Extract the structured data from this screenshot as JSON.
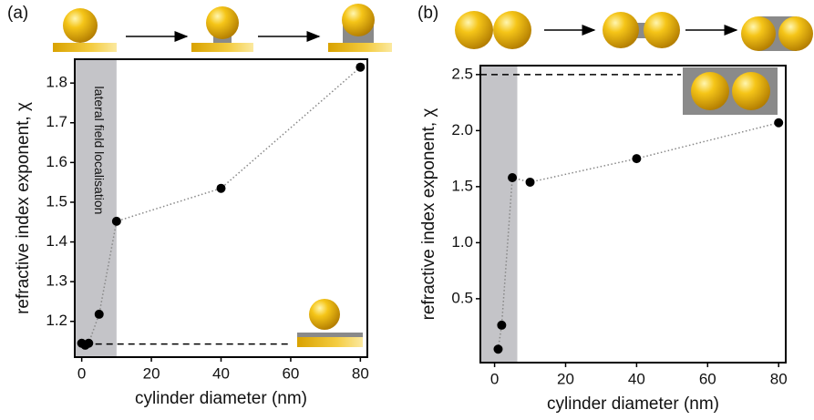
{
  "chart_data": [
    {
      "type": "scatter",
      "panel_label": "(a)",
      "annotation": "lateral field localisation",
      "x_label": "cylinder diameter (nm)",
      "y_label": "refractive index exponent, χ",
      "x": [
        0,
        1,
        2,
        5,
        10,
        40,
        80
      ],
      "values": [
        1.145,
        1.14,
        1.145,
        1.218,
        1.452,
        1.535,
        1.84
      ],
      "color": "#000000",
      "line_color": "#888888",
      "xlim": [
        -2,
        82
      ],
      "ylim": [
        1.11,
        1.86
      ],
      "xticks": [
        0,
        20,
        40,
        60,
        80
      ],
      "yticks": [
        1.2,
        1.3,
        1.4,
        1.5,
        1.6,
        1.7,
        1.8
      ],
      "shade_x": [
        -2,
        10
      ],
      "reference_line": {
        "y": 1.143,
        "x": [
          0.8,
          60
        ]
      }
    },
    {
      "type": "scatter",
      "panel_label": "(b)",
      "x_label": "cylinder diameter (nm)",
      "y_label": "refractive index exponent, χ",
      "x": [
        1,
        2,
        5,
        10,
        40,
        80
      ],
      "values": [
        0.05,
        0.264,
        1.58,
        1.54,
        1.75,
        2.07
      ],
      "color": "#000000",
      "line_color": "#888888",
      "xlim": [
        -4,
        82
      ],
      "ylim": [
        -0.07,
        2.58
      ],
      "xticks": [
        0,
        20,
        40,
        60,
        80
      ],
      "yticks": [
        0.5,
        {
          "value": 1,
          "label": "1.0"
        },
        1.5,
        {
          "value": 2,
          "label": "2.0"
        },
        2.5
      ],
      "shade_x": [
        -4,
        6.4
      ],
      "reference_line": {
        "y": 2.5,
        "x": [
          -4,
          52.5
        ]
      }
    }
  ]
}
